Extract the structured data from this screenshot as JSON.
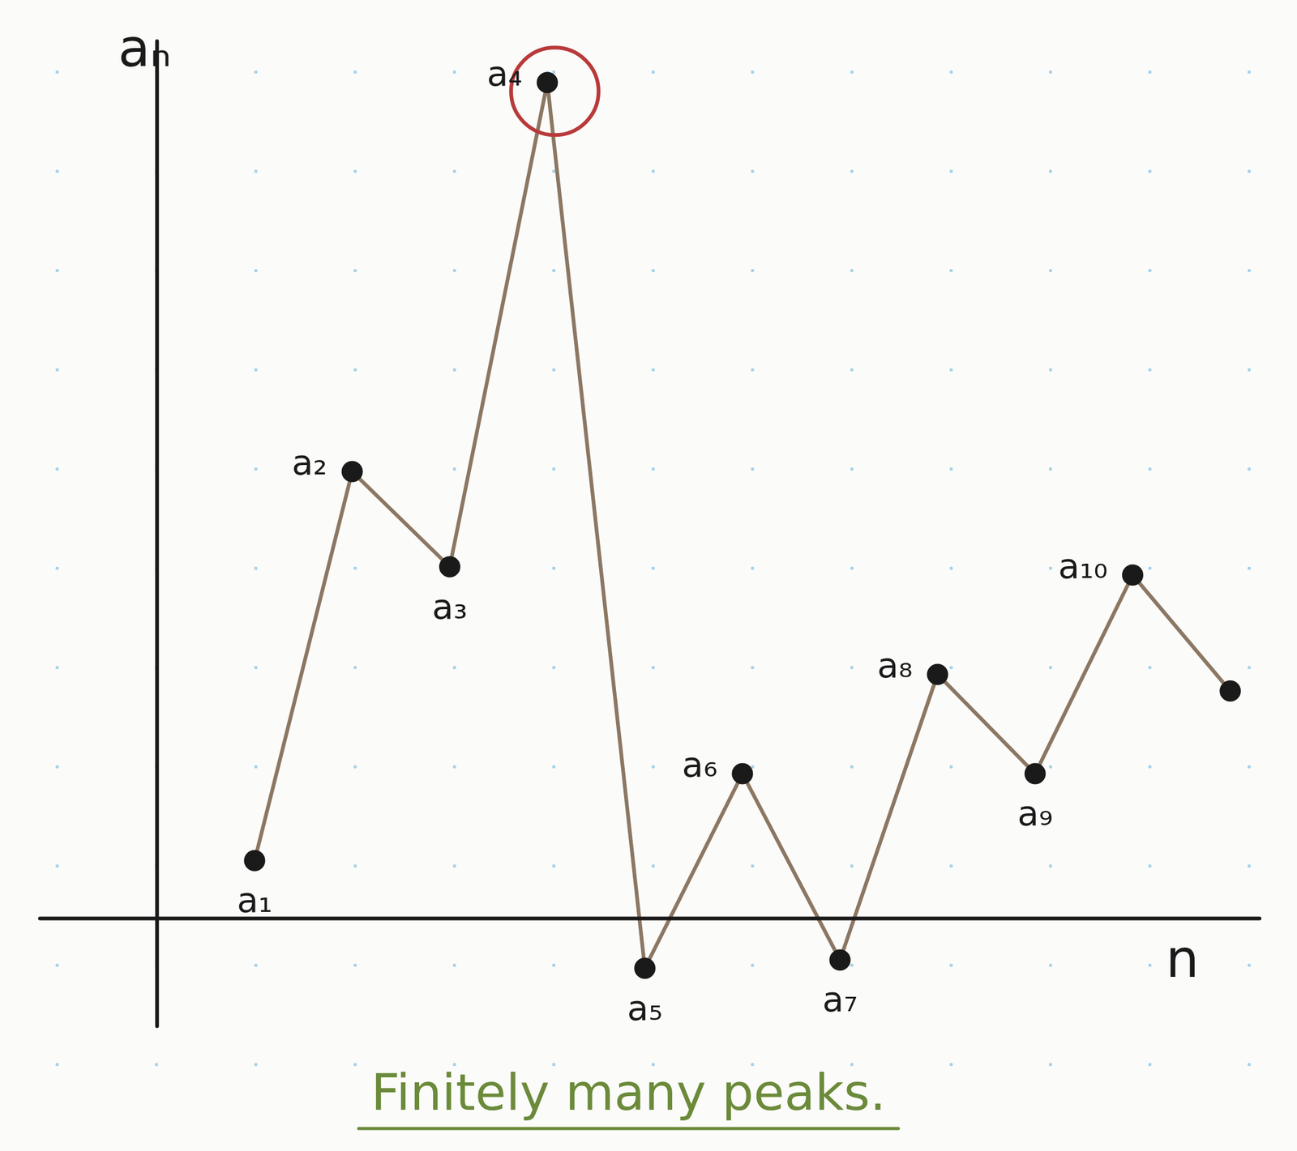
{
  "chart_data": {
    "type": "line",
    "x": [
      1,
      2,
      3,
      4,
      5,
      6,
      7,
      8,
      9,
      10,
      11
    ],
    "values": [
      0.7,
      5.4,
      4.25,
      10.1,
      -0.6,
      1.75,
      -0.5,
      2.95,
      1.75,
      4.15,
      2.75
    ],
    "point_labels": [
      "a₁",
      "a₂",
      "a₃",
      "a₄",
      "a₅",
      "a₆",
      "a₇",
      "a₈",
      "a₉",
      "a₁₀",
      null
    ],
    "color": "#8b7763",
    "colors": [
      "#1a1a1a",
      "#1a1a1a",
      "#1a1a1a",
      "#b83a3a",
      "#1a1a1a",
      "#1a1a1a",
      "#1a1a1a",
      "#1a1a1a",
      "#1a1a1a",
      "#1a1a1a",
      "#1a1a1a"
    ],
    "marker": "circle",
    "xlim": [
      -1.2,
      11.3
    ],
    "ylim": [
      -1.3,
      10.6
    ],
    "x_label": "n",
    "y_label": "aₙ",
    "annotation": "Finitely many peaks.",
    "grid": false,
    "tick_labels": false
  }
}
